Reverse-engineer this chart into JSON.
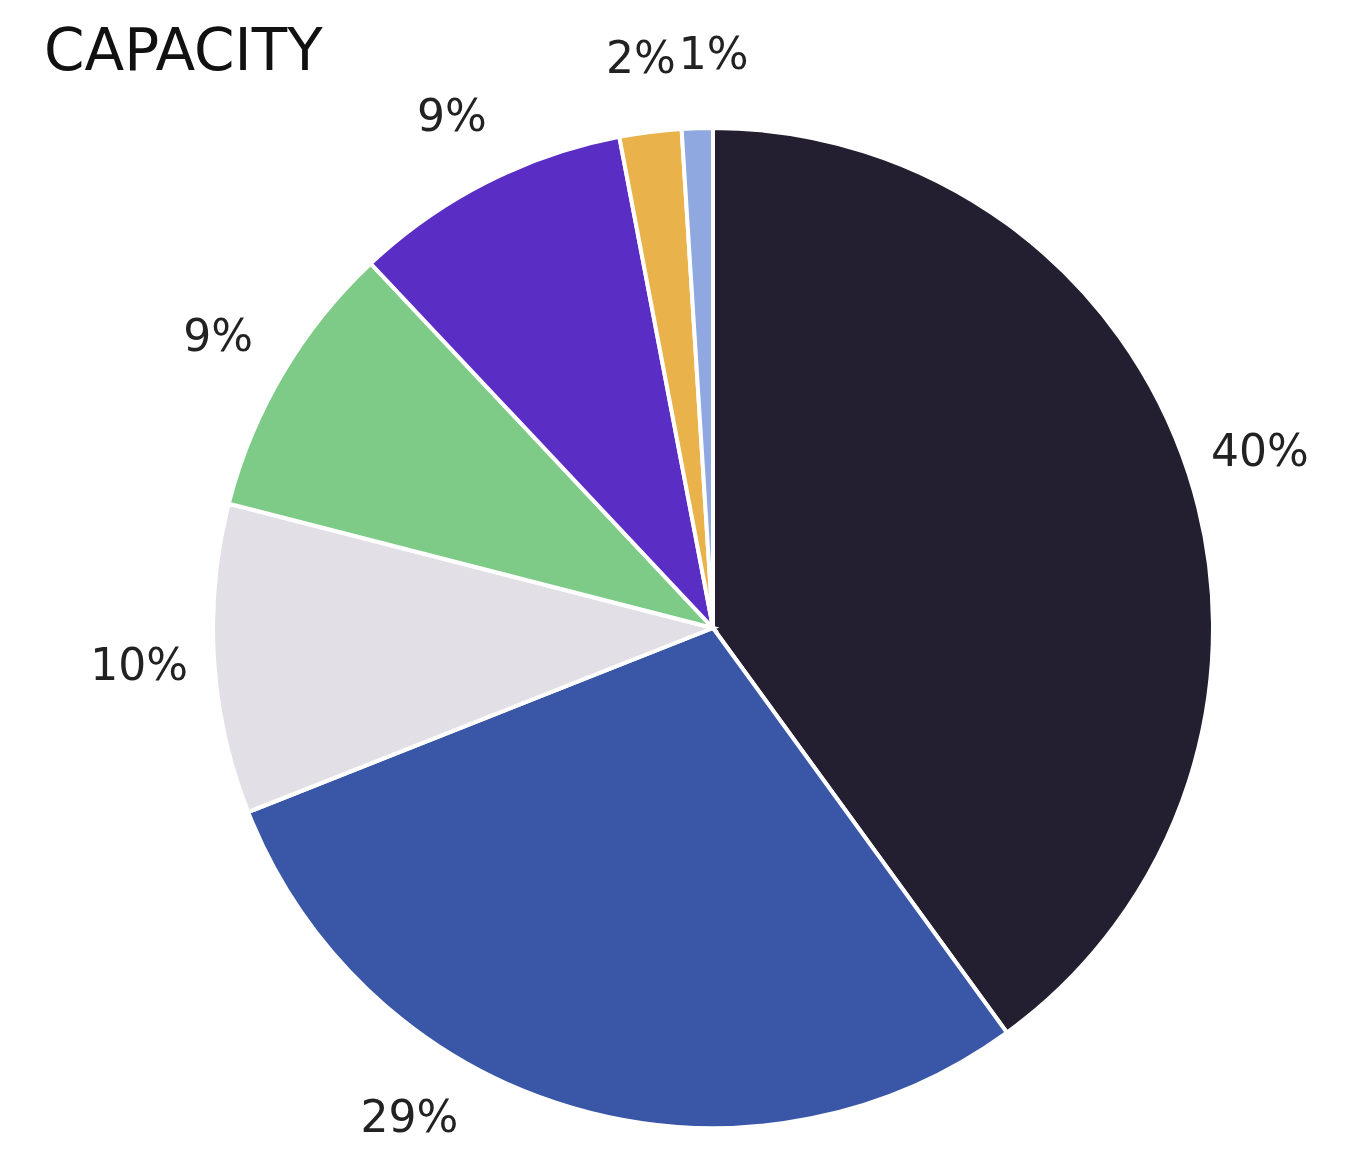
{
  "chart_data": {
    "type": "pie",
    "title": "CAPACITY",
    "categories": [
      null,
      null,
      null,
      null,
      null,
      null,
      null
    ],
    "values": [
      40,
      29,
      10,
      9,
      9,
      2,
      1
    ],
    "value_labels": [
      "40%",
      "29%",
      "10%",
      "9%",
      "9%",
      "2%",
      "1%"
    ],
    "colors": [
      "#231f30",
      "#3a57a7",
      "#e2e0e6",
      "#7dcb87",
      "#5a2ec4",
      "#eab24a",
      "#8fa8e0"
    ],
    "legend": false
  }
}
